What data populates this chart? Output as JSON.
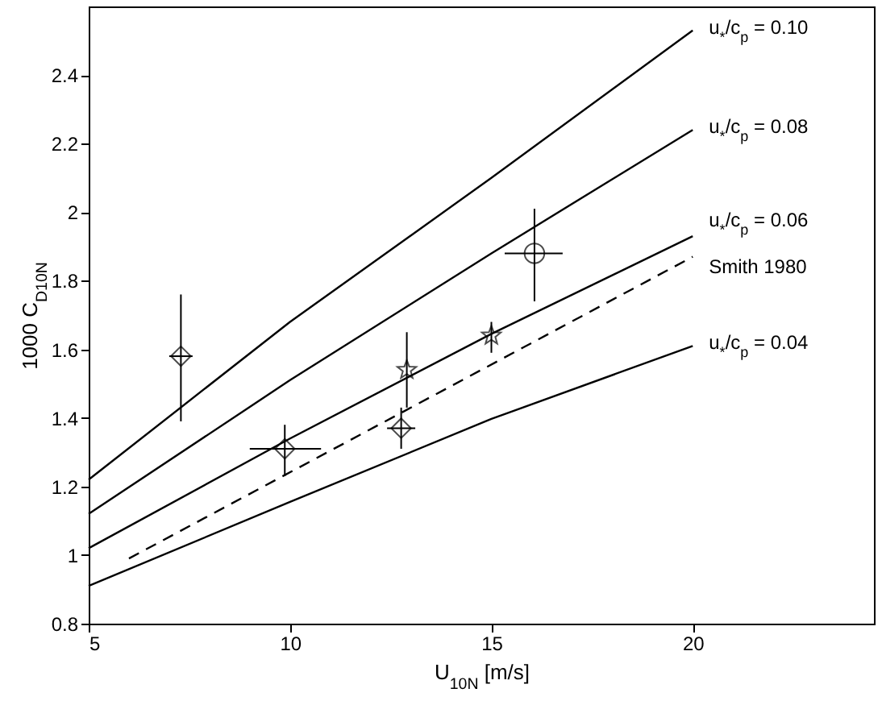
{
  "chart_data": {
    "type": "line",
    "xlabel": "U$_{10N}$ [m/s]",
    "ylabel": "1000 C$_{D10N}$",
    "xlim": [
      5,
      24.5
    ],
    "ylim": [
      0.8,
      2.6
    ],
    "xticks": [
      5,
      10,
      15,
      20
    ],
    "yticks": [
      0.8,
      1,
      1.2,
      1.4,
      1.6,
      1.8,
      2,
      2.2,
      2.4
    ],
    "series": [
      {
        "name": "u$_{*}$/c$_{p}$ = 0.10",
        "type": "line",
        "color": "#000000",
        "line_style": "solid",
        "x": [
          5,
          10,
          15,
          20
        ],
        "values": [
          1.22,
          1.68,
          2.1,
          2.53
        ]
      },
      {
        "name": "u$_{*}$/c$_{p}$ = 0.08",
        "type": "line",
        "color": "#000000",
        "line_style": "solid",
        "x": [
          5,
          10,
          15,
          20
        ],
        "values": [
          1.12,
          1.51,
          1.88,
          2.24
        ]
      },
      {
        "name": "u$_{*}$/c$_{p}$ = 0.06",
        "type": "line",
        "color": "#000000",
        "line_style": "solid",
        "x": [
          5,
          10,
          15,
          20
        ],
        "values": [
          1.02,
          1.34,
          1.645,
          1.93
        ]
      },
      {
        "name": "Smith 1980",
        "type": "line",
        "color": "#000000",
        "line_style": "dashed",
        "x": [
          6,
          20
        ],
        "values": [
          0.99,
          1.87
        ]
      },
      {
        "name": "u$_{*}$/c$_{p}$ = 0.04",
        "type": "line",
        "color": "#000000",
        "line_style": "solid",
        "x": [
          5,
          10,
          15,
          20
        ],
        "values": [
          0.91,
          1.155,
          1.397,
          1.61
        ]
      },
      {
        "type": "scatter",
        "marker": "diamond",
        "color": "#000000",
        "x": [
          7.29,
          9.87,
          12.76
        ],
        "values": [
          1.58,
          1.31,
          1.37
        ],
        "errors": [
          [
            1.39,
            1.76
          ],
          [
            1.23,
            1.38
          ],
          [
            1.31,
            1.43
          ]
        ],
        "xerrors": [
          [
            7.0,
            7.58
          ],
          [
            9.0,
            10.77
          ],
          [
            12.41,
            13.11
          ]
        ]
      },
      {
        "type": "scatter",
        "marker": "star",
        "color": "#000000",
        "x": [
          12.9,
          15.0
        ],
        "values": [
          1.54,
          1.64
        ],
        "errors": [
          [
            1.43,
            1.65
          ],
          [
            1.59,
            1.68
          ]
        ]
      },
      {
        "type": "scatter",
        "marker": "circle",
        "color": "#000000",
        "x": [
          16.07
        ],
        "values": [
          1.88
        ],
        "errors": [
          [
            1.74,
            2.01
          ]
        ],
        "xerrors": [
          [
            15.33,
            16.77
          ]
        ]
      }
    ]
  }
}
